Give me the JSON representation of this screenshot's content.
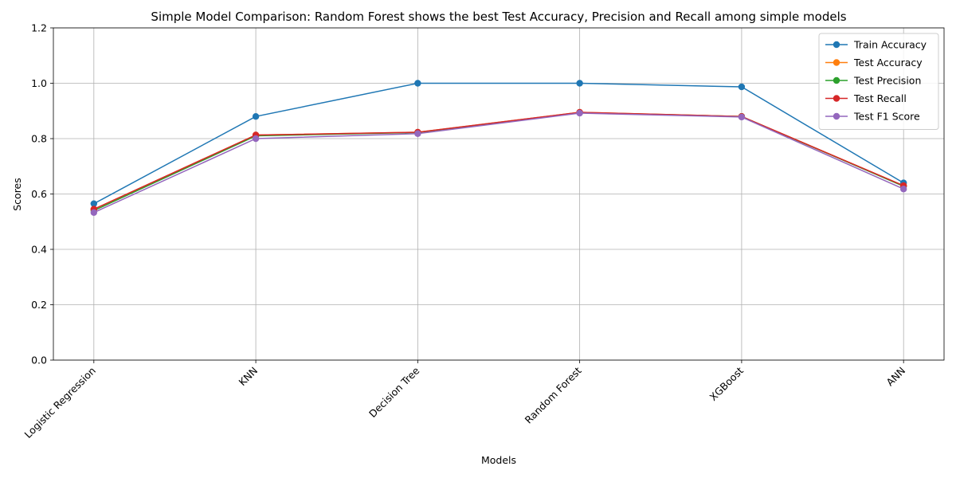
{
  "chart_data": {
    "type": "line",
    "title": "Simple Model Comparison: Random Forest shows the best Test Accuracy, Precision and Recall among simple models",
    "xlabel": "Models",
    "ylabel": "Scores",
    "categories": [
      "Logistic Regression",
      "KNN",
      "Decision Tree",
      "Random Forest",
      "XGBoost",
      "ANN"
    ],
    "ylim": [
      0,
      1.2
    ],
    "yticks": [
      "0.0",
      "0.2",
      "0.4",
      "0.6",
      "0.8",
      "1.0",
      "1.2"
    ],
    "grid": true,
    "legend_position": "top-right",
    "series": [
      {
        "name": "Train Accuracy",
        "color": "#1f77b4",
        "values": [
          0.565,
          0.88,
          1.0,
          1.0,
          0.987,
          0.64
        ]
      },
      {
        "name": "Test Accuracy",
        "color": "#ff7f0e",
        "values": [
          0.545,
          0.813,
          0.823,
          0.895,
          0.88,
          0.63
        ]
      },
      {
        "name": "Test Precision",
        "color": "#2ca02c",
        "values": [
          0.54,
          0.81,
          0.822,
          0.894,
          0.88,
          0.628
        ]
      },
      {
        "name": "Test Recall",
        "color": "#d62728",
        "values": [
          0.545,
          0.813,
          0.823,
          0.895,
          0.88,
          0.63
        ]
      },
      {
        "name": "Test F1 Score",
        "color": "#9467bd",
        "values": [
          0.533,
          0.8,
          0.818,
          0.892,
          0.878,
          0.618
        ]
      }
    ]
  }
}
